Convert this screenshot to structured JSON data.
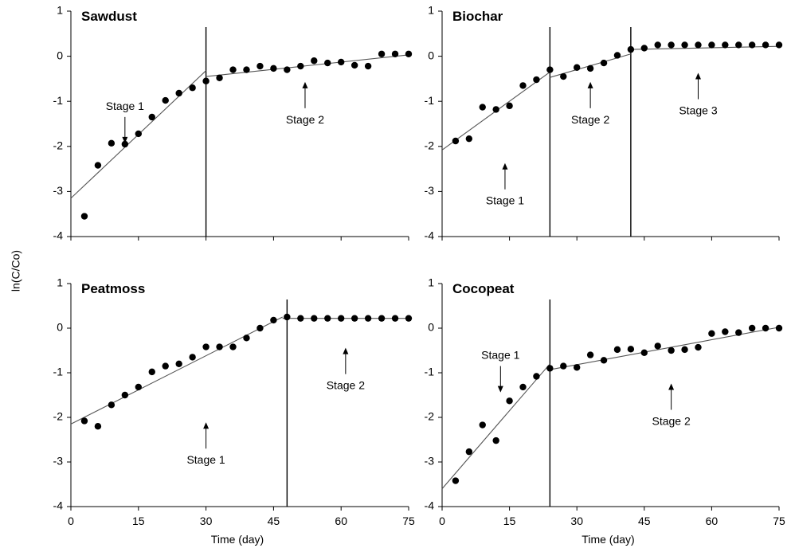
{
  "ylabel": "ln(C/Co)",
  "chart_data": [
    {
      "type": "scatter",
      "title": "Sawdust",
      "xlabel": "Time (day)",
      "xlim": [
        0,
        75
      ],
      "ylim": [
        -4,
        1
      ],
      "xticks": [
        0,
        15,
        30,
        45,
        60,
        75
      ],
      "yticks": [
        1,
        0,
        -1,
        -2,
        -3,
        -4
      ],
      "points": [
        [
          3,
          -3.55
        ],
        [
          6,
          -2.42
        ],
        [
          9,
          -1.93
        ],
        [
          12,
          -1.95
        ],
        [
          15,
          -1.72
        ],
        [
          18,
          -1.35
        ],
        [
          21,
          -0.98
        ],
        [
          24,
          -0.82
        ],
        [
          27,
          -0.7
        ],
        [
          30,
          -0.55
        ],
        [
          33,
          -0.48
        ],
        [
          36,
          -0.3
        ],
        [
          39,
          -0.3
        ],
        [
          42,
          -0.22
        ],
        [
          45,
          -0.27
        ],
        [
          48,
          -0.3
        ],
        [
          51,
          -0.22
        ],
        [
          54,
          -0.1
        ],
        [
          57,
          -0.15
        ],
        [
          60,
          -0.13
        ],
        [
          63,
          -0.2
        ],
        [
          66,
          -0.22
        ],
        [
          69,
          0.05
        ],
        [
          72,
          0.05
        ],
        [
          75,
          0.05
        ]
      ],
      "fit_lines": [
        [
          [
            0,
            -3.15
          ],
          [
            30,
            -0.32
          ]
        ],
        [
          [
            30,
            -0.45
          ],
          [
            75,
            0.03
          ]
        ]
      ],
      "stage_boundaries": [
        30
      ],
      "annotations": [
        {
          "label": "Stage 1",
          "x": 12,
          "y": -1.1,
          "arrow": "down"
        },
        {
          "label": "Stage 2",
          "x": 52,
          "y": -1.4,
          "arrow": "up"
        }
      ]
    },
    {
      "type": "scatter",
      "title": "Biochar",
      "xlabel": "Time (day)",
      "xlim": [
        0,
        75
      ],
      "ylim": [
        -4,
        1
      ],
      "xticks": [
        0,
        15,
        30,
        45,
        60,
        75
      ],
      "yticks": [
        1,
        0,
        -1,
        -2,
        -3,
        -4
      ],
      "points": [
        [
          3,
          -1.88
        ],
        [
          6,
          -1.83
        ],
        [
          9,
          -1.13
        ],
        [
          12,
          -1.18
        ],
        [
          15,
          -1.1
        ],
        [
          18,
          -0.65
        ],
        [
          21,
          -0.52
        ],
        [
          24,
          -0.3
        ],
        [
          27,
          -0.45
        ],
        [
          30,
          -0.25
        ],
        [
          33,
          -0.27
        ],
        [
          36,
          -0.15
        ],
        [
          39,
          0.02
        ],
        [
          42,
          0.15
        ],
        [
          45,
          0.18
        ],
        [
          48,
          0.25
        ],
        [
          51,
          0.25
        ],
        [
          54,
          0.25
        ],
        [
          57,
          0.25
        ],
        [
          60,
          0.25
        ],
        [
          63,
          0.25
        ],
        [
          66,
          0.25
        ],
        [
          69,
          0.25
        ],
        [
          72,
          0.25
        ],
        [
          75,
          0.25
        ]
      ],
      "fit_lines": [
        [
          [
            0,
            -2.08
          ],
          [
            24,
            -0.35
          ]
        ],
        [
          [
            24,
            -0.47
          ],
          [
            42,
            0.05
          ]
        ],
        [
          [
            42,
            0.15
          ],
          [
            75,
            0.22
          ]
        ]
      ],
      "stage_boundaries": [
        24,
        42
      ],
      "annotations": [
        {
          "label": "Stage 1",
          "x": 14,
          "y": -3.2,
          "arrow": "up"
        },
        {
          "label": "Stage 2",
          "x": 33,
          "y": -1.4,
          "arrow": "up"
        },
        {
          "label": "Stage 3",
          "x": 57,
          "y": -1.2,
          "arrow": "up"
        }
      ]
    },
    {
      "type": "scatter",
      "title": "Peatmoss",
      "xlabel": "Time (day)",
      "xlim": [
        0,
        75
      ],
      "ylim": [
        -4,
        1
      ],
      "xticks": [
        0,
        15,
        30,
        45,
        60,
        75
      ],
      "yticks": [
        1,
        0,
        -1,
        -2,
        -3,
        -4
      ],
      "points": [
        [
          3,
          -2.08
        ],
        [
          6,
          -2.2
        ],
        [
          9,
          -1.72
        ],
        [
          12,
          -1.5
        ],
        [
          15,
          -1.32
        ],
        [
          18,
          -0.98
        ],
        [
          21,
          -0.85
        ],
        [
          24,
          -0.8
        ],
        [
          27,
          -0.65
        ],
        [
          30,
          -0.42
        ],
        [
          33,
          -0.42
        ],
        [
          36,
          -0.42
        ],
        [
          39,
          -0.22
        ],
        [
          42,
          0.0
        ],
        [
          45,
          0.18
        ],
        [
          48,
          0.25
        ],
        [
          51,
          0.22
        ],
        [
          54,
          0.22
        ],
        [
          57,
          0.22
        ],
        [
          60,
          0.22
        ],
        [
          63,
          0.22
        ],
        [
          66,
          0.22
        ],
        [
          69,
          0.22
        ],
        [
          72,
          0.22
        ],
        [
          75,
          0.22
        ]
      ],
      "fit_lines": [
        [
          [
            0,
            -2.15
          ],
          [
            47,
            0.25
          ]
        ],
        [
          [
            47,
            0.22
          ],
          [
            75,
            0.22
          ]
        ]
      ],
      "stage_boundaries": [
        48
      ],
      "annotations": [
        {
          "label": "Stage 1",
          "x": 30,
          "y": -2.95,
          "arrow": "up"
        },
        {
          "label": "Stage 2",
          "x": 61,
          "y": -1.28,
          "arrow": "up"
        }
      ]
    },
    {
      "type": "scatter",
      "title": "Cocopeat",
      "xlabel": "Time (day)",
      "xlim": [
        0,
        75
      ],
      "ylim": [
        -4,
        1
      ],
      "xticks": [
        0,
        15,
        30,
        45,
        60,
        75
      ],
      "yticks": [
        1,
        0,
        -1,
        -2,
        -3,
        -4
      ],
      "points": [
        [
          3,
          -3.42
        ],
        [
          6,
          -2.77
        ],
        [
          9,
          -2.17
        ],
        [
          12,
          -2.52
        ],
        [
          15,
          -1.63
        ],
        [
          18,
          -1.32
        ],
        [
          21,
          -1.08
        ],
        [
          24,
          -0.9
        ],
        [
          27,
          -0.85
        ],
        [
          30,
          -0.88
        ],
        [
          33,
          -0.6
        ],
        [
          36,
          -0.72
        ],
        [
          39,
          -0.48
        ],
        [
          42,
          -0.47
        ],
        [
          45,
          -0.55
        ],
        [
          48,
          -0.4
        ],
        [
          51,
          -0.5
        ],
        [
          54,
          -0.48
        ],
        [
          57,
          -0.43
        ],
        [
          60,
          -0.12
        ],
        [
          63,
          -0.08
        ],
        [
          66,
          -0.1
        ],
        [
          69,
          0.0
        ],
        [
          72,
          0.0
        ],
        [
          75,
          0.0
        ]
      ],
      "fit_lines": [
        [
          [
            0,
            -3.6
          ],
          [
            24,
            -0.8
          ]
        ],
        [
          [
            24,
            -0.93
          ],
          [
            75,
            0.02
          ]
        ]
      ],
      "stage_boundaries": [
        24
      ],
      "annotations": [
        {
          "label": "Stage 1",
          "x": 13,
          "y": -0.6,
          "arrow": "down"
        },
        {
          "label": "Stage 2",
          "x": 51,
          "y": -2.08,
          "arrow": "up"
        }
      ]
    }
  ]
}
